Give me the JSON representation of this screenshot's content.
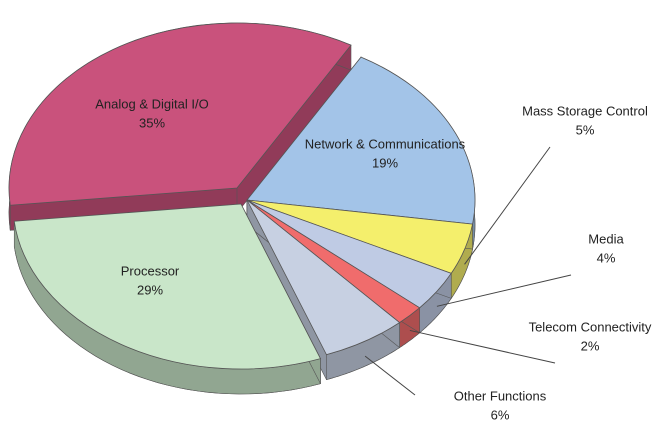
{
  "chart_data": {
    "type": "pie",
    "categories": [
      "Analog & Digital I/O",
      "Network & Communications",
      "Mass Storage Control",
      "Media",
      "Telecom Connectivity",
      "Other Functions",
      "Processor"
    ],
    "values": [
      35,
      19,
      5,
      4,
      2,
      6,
      29
    ],
    "value_labels": [
      "35%",
      "19%",
      "5%",
      "4%",
      "2%",
      "6%",
      "29%"
    ],
    "colors": [
      "#c9527c",
      "#a3c4e8",
      "#f4ef6c",
      "#bfcbe4",
      "#f06c6c",
      "#c7d0e2",
      "#c9e6c9"
    ]
  }
}
